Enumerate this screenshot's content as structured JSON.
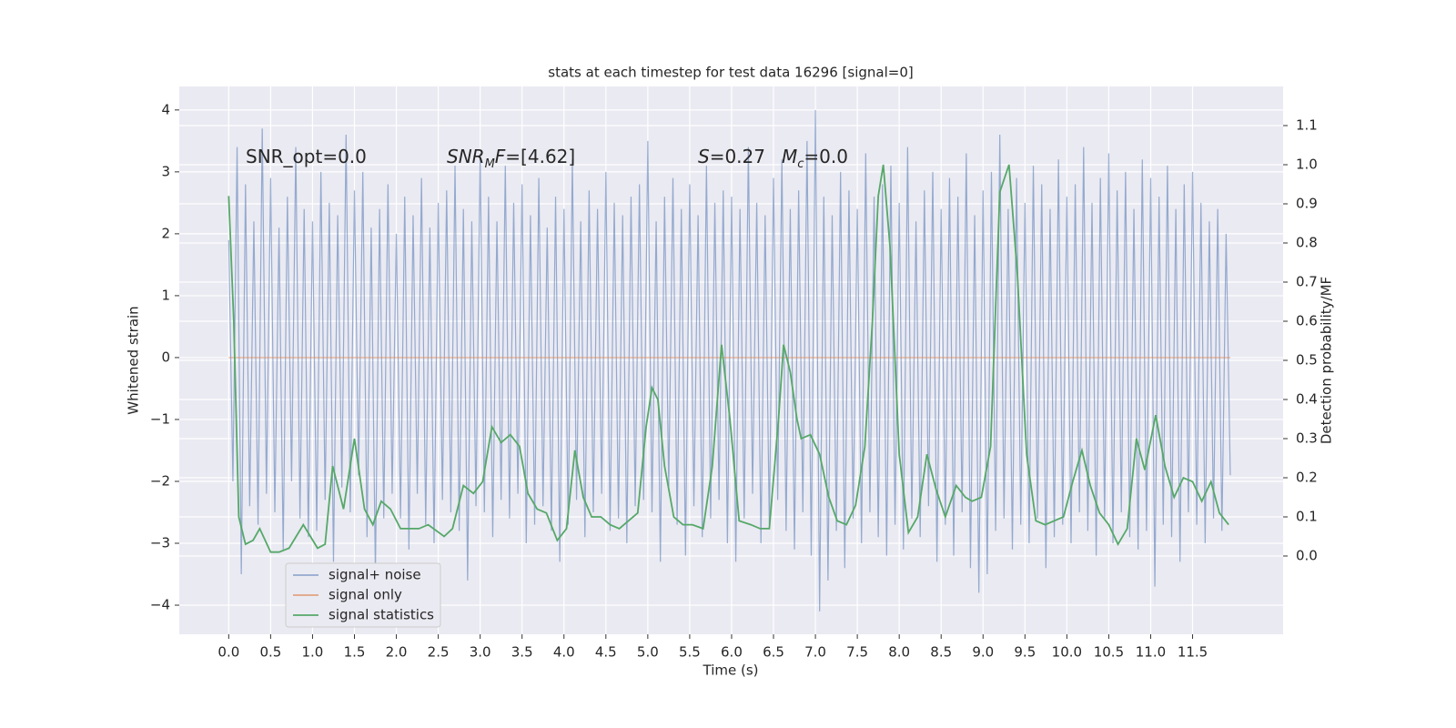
{
  "chart_data": {
    "type": "line",
    "title": "stats at each timestep for test data 16296 [signal=0]",
    "xlabel": "Time (s)",
    "ylabel": "Whitened strain",
    "y2label": "Detection probability/MF",
    "annotations": [
      [
        {
          "text": "SNR_opt=0.0",
          "style": "plain"
        }
      ],
      [
        {
          "text": "SNR",
          "style": "italic"
        },
        {
          "text": "M",
          "style": "sub"
        },
        {
          "text": "F",
          "style": "italic"
        },
        {
          "text": "=[4.62]",
          "style": "plain"
        }
      ],
      [
        {
          "text": "S",
          "style": "italic"
        },
        {
          "text": "=0.27",
          "style": "plain"
        }
      ],
      [
        {
          "text": "M",
          "style": "italic"
        },
        {
          "text": "c",
          "style": "sub"
        },
        {
          "text": "=0.0",
          "style": "plain"
        }
      ]
    ],
    "xlim": [
      -0.59,
      12.58
    ],
    "ylim": [
      -4.47,
      4.38
    ],
    "y2lim": [
      -0.2,
      1.2
    ],
    "xticks": [
      {
        "value": 0,
        "label": "0.0"
      },
      {
        "value": 0.5,
        "label": "0.5"
      },
      {
        "value": 1,
        "label": "1.0"
      },
      {
        "value": 1.5,
        "label": "1.5"
      },
      {
        "value": 2,
        "label": "2.0"
      },
      {
        "value": 2.5,
        "label": "2.5"
      },
      {
        "value": 3,
        "label": "3.0"
      },
      {
        "value": 3.5,
        "label": "3.5"
      },
      {
        "value": 4,
        "label": "4.0"
      },
      {
        "value": 4.5,
        "label": "4.5"
      },
      {
        "value": 5,
        "label": "5.0"
      },
      {
        "value": 5.5,
        "label": "5.5"
      },
      {
        "value": 6,
        "label": "6.0"
      },
      {
        "value": 6.5,
        "label": "6.5"
      },
      {
        "value": 7,
        "label": "7.0"
      },
      {
        "value": 7.5,
        "label": "7.5"
      },
      {
        "value": 8,
        "label": "8.0"
      },
      {
        "value": 8.5,
        "label": "8.5"
      },
      {
        "value": 9,
        "label": "9.0"
      },
      {
        "value": 9.5,
        "label": "9.5"
      },
      {
        "value": 10,
        "label": "10.0"
      },
      {
        "value": 10.5,
        "label": "10.5"
      },
      {
        "value": 11,
        "label": "11.0"
      },
      {
        "value": 11.5,
        "label": "11.5"
      }
    ],
    "yticks": [
      {
        "value": -4,
        "label": "−4"
      },
      {
        "value": -3,
        "label": "−3"
      },
      {
        "value": -2,
        "label": "−2"
      },
      {
        "value": -1,
        "label": "−1"
      },
      0,
      1,
      2,
      3,
      4
    ],
    "y2ticks": [
      {
        "value": 0,
        "label": "0.0"
      },
      {
        "value": 0.1,
        "label": "0.1"
      },
      {
        "value": 0.2,
        "label": "0.2"
      },
      {
        "value": 0.3,
        "label": "0.3"
      },
      {
        "value": 0.4,
        "label": "0.4"
      },
      {
        "value": 0.5,
        "label": "0.5"
      },
      {
        "value": 0.6,
        "label": "0.6"
      },
      {
        "value": 0.7,
        "label": "0.7"
      },
      {
        "value": 0.8,
        "label": "0.8"
      },
      {
        "value": 0.9,
        "label": "0.9"
      },
      {
        "value": 1,
        "label": "1.0"
      },
      {
        "value": 1.1,
        "label": "1.1"
      }
    ],
    "grid": true,
    "legend": "lower left",
    "series": [
      {
        "name": "signal+ noise",
        "color": "#4c72b0",
        "alpha": 0.55,
        "x": [
          0,
          0.05,
          0.1,
          0.15,
          0.2,
          0.25,
          0.3,
          0.35,
          0.4,
          0.45,
          0.5,
          0.55,
          0.6,
          0.65,
          0.7,
          0.75,
          0.8,
          0.85,
          0.9,
          0.95,
          1,
          1.05,
          1.1,
          1.15,
          1.2,
          1.25,
          1.3,
          1.35,
          1.4,
          1.45,
          1.5,
          1.55,
          1.6,
          1.65,
          1.7,
          1.75,
          1.8,
          1.85,
          1.9,
          1.95,
          2,
          2.05,
          2.1,
          2.15,
          2.2,
          2.25,
          2.3,
          2.35,
          2.4,
          2.45,
          2.5,
          2.55,
          2.6,
          2.65,
          2.7,
          2.75,
          2.8,
          2.85,
          2.9,
          2.95,
          3,
          3.05,
          3.1,
          3.15,
          3.2,
          3.25,
          3.3,
          3.35,
          3.4,
          3.45,
          3.5,
          3.55,
          3.6,
          3.65,
          3.7,
          3.75,
          3.8,
          3.85,
          3.9,
          3.95,
          4,
          4.05,
          4.1,
          4.15,
          4.2,
          4.25,
          4.3,
          4.35,
          4.4,
          4.45,
          4.5,
          4.55,
          4.6,
          4.65,
          4.7,
          4.75,
          4.8,
          4.85,
          4.9,
          4.95,
          5,
          5.05,
          5.1,
          5.15,
          5.2,
          5.25,
          5.3,
          5.35,
          5.4,
          5.45,
          5.5,
          5.55,
          5.6,
          5.65,
          5.7,
          5.75,
          5.8,
          5.85,
          5.9,
          5.95,
          6,
          6.05,
          6.1,
          6.15,
          6.2,
          6.25,
          6.3,
          6.35,
          6.4,
          6.45,
          6.5,
          6.55,
          6.6,
          6.65,
          6.7,
          6.75,
          6.8,
          6.85,
          6.9,
          6.95,
          7,
          7.05,
          7.1,
          7.15,
          7.2,
          7.25,
          7.3,
          7.35,
          7.4,
          7.45,
          7.5,
          7.55,
          7.6,
          7.65,
          7.7,
          7.75,
          7.8,
          7.85,
          7.9,
          7.95,
          8,
          8.05,
          8.1,
          8.15,
          8.2,
          8.25,
          8.3,
          8.35,
          8.4,
          8.45,
          8.5,
          8.55,
          8.6,
          8.65,
          8.7,
          8.75,
          8.8,
          8.85,
          8.9,
          8.95,
          9,
          9.05,
          9.1,
          9.15,
          9.2,
          9.25,
          9.3,
          9.35,
          9.4,
          9.45,
          9.5,
          9.55,
          9.6,
          9.65,
          9.7,
          9.75,
          9.8,
          9.85,
          9.9,
          9.95,
          10,
          10.05,
          10.1,
          10.15,
          10.2,
          10.25,
          10.3,
          10.35,
          10.4,
          10.45,
          10.5,
          10.55,
          10.6,
          10.65,
          10.7,
          10.75,
          10.8,
          10.85,
          10.9,
          10.95,
          11,
          11.05,
          11.1,
          11.15,
          11.2,
          11.25,
          11.3,
          11.35,
          11.4,
          11.45,
          11.5,
          11.55,
          11.6,
          11.65,
          11.7,
          11.75,
          11.8,
          11.85,
          11.9,
          11.95
        ],
        "values": [
          1.9,
          -2.0,
          3.4,
          -3.5,
          2.8,
          -2.4,
          2.2,
          -2.7,
          3.7,
          -2.2,
          2.9,
          -2.5,
          2.1,
          -3.1,
          2.6,
          -2.0,
          3.4,
          -2.6,
          2.4,
          -2.9,
          2.2,
          -2.8,
          3.0,
          -2.3,
          2.5,
          -3.3,
          2.3,
          -2.1,
          3.6,
          -2.5,
          2.7,
          -1.9,
          3.0,
          -2.9,
          2.1,
          -3.5,
          2.4,
          -2.6,
          2.8,
          -2.2,
          2.0,
          -2.6,
          2.6,
          -3.1,
          2.3,
          -2.2,
          2.9,
          -2.7,
          2.1,
          -3.0,
          2.5,
          -2.3,
          2.7,
          -2.5,
          3.1,
          -2.8,
          2.4,
          -3.6,
          2.2,
          -2.4,
          3.3,
          -2.5,
          2.6,
          -2.9,
          2.2,
          -2.3,
          3.1,
          -2.6,
          2.5,
          -2.2,
          2.8,
          -3.0,
          2.3,
          -2.7,
          2.9,
          -2.4,
          2.1,
          -2.8,
          2.6,
          -3.3,
          2.4,
          -2.7,
          3.2,
          -2.3,
          2.2,
          -2.9,
          2.7,
          -2.5,
          2.4,
          -2.2,
          3.0,
          -2.8,
          2.5,
          -2.6,
          2.3,
          -3.0,
          2.6,
          -2.4,
          2.8,
          -2.3,
          3.5,
          -2.5,
          2.2,
          -3.3,
          2.6,
          -2.1,
          2.9,
          -2.7,
          2.4,
          -3.2,
          2.8,
          -2.4,
          2.3,
          -2.9,
          3.1,
          -2.6,
          2.5,
          -2.3,
          2.7,
          -3.0,
          2.6,
          -3.3,
          2.4,
          -2.6,
          3.4,
          -2.2,
          2.5,
          -3.0,
          2.3,
          -2.7,
          2.9,
          -2.3,
          3.2,
          -2.8,
          2.4,
          -3.1,
          2.7,
          -2.5,
          3.5,
          -3.2,
          4.0,
          -4.1,
          2.6,
          -3.6,
          2.3,
          -2.8,
          3.0,
          -3.4,
          2.7,
          -2.6,
          2.4,
          -3.0,
          3.3,
          -2.5,
          2.6,
          -2.9,
          2.8,
          -3.2,
          3.1,
          -2.7,
          2.5,
          -3.1,
          3.4,
          -2.6,
          2.2,
          -2.9,
          2.7,
          -2.4,
          3.0,
          -3.3,
          2.4,
          -2.7,
          2.9,
          -3.2,
          2.6,
          -2.5,
          3.3,
          -3.4,
          2.3,
          -3.8,
          2.7,
          -3.5,
          3.0,
          -2.8,
          3.6,
          -2.6,
          2.4,
          -3.1,
          2.9,
          -2.7,
          2.5,
          -3.0,
          3.1,
          -2.6,
          2.8,
          -3.4,
          2.4,
          -2.9,
          3.2,
          -2.7,
          2.6,
          -3.0,
          2.8,
          -2.5,
          3.4,
          -2.8,
          2.5,
          -3.2,
          2.9,
          -2.6,
          3.3,
          -3.0,
          2.7,
          -2.5,
          3.0,
          -2.9,
          2.4,
          -3.1,
          3.2,
          -2.8,
          2.9,
          -3.7,
          2.6,
          -2.7,
          3.1,
          -2.9,
          2.4,
          -3.3,
          2.8,
          -2.5,
          3.0,
          -2.7,
          2.5,
          -3.0,
          2.2,
          -2.6,
          2.4,
          -2.8,
          2.0,
          -1.9
        ]
      },
      {
        "name": "signal only",
        "color": "#dd8452",
        "alpha": 0.7,
        "x": [
          0,
          11.95
        ],
        "values": [
          0,
          0
        ]
      },
      {
        "name": "signal statistics",
        "color": "#55a868",
        "alpha": 1,
        "axis": "y2",
        "x": [
          0,
          0.06,
          0.12,
          0.2,
          0.29,
          0.37,
          0.5,
          0.6,
          0.72,
          0.89,
          1.06,
          1.15,
          1.24,
          1.37,
          1.5,
          1.62,
          1.72,
          1.82,
          1.93,
          2.05,
          2.27,
          2.38,
          2.57,
          2.67,
          2.8,
          2.92,
          3.03,
          3.14,
          3.25,
          3.36,
          3.47,
          3.57,
          3.68,
          3.79,
          3.92,
          4.03,
          4.13,
          4.23,
          4.33,
          4.44,
          4.55,
          4.66,
          4.77,
          4.88,
          4.98,
          5.05,
          5.12,
          5.2,
          5.31,
          5.42,
          5.53,
          5.66,
          5.77,
          5.88,
          5.98,
          6.09,
          6.23,
          6.34,
          6.45,
          6.56,
          6.62,
          6.7,
          6.78,
          6.83,
          6.94,
          7.05,
          7.16,
          7.26,
          7.37,
          7.48,
          7.59,
          7.68,
          7.75,
          7.81,
          7.89,
          8.0,
          8.11,
          8.22,
          8.33,
          8.44,
          8.55,
          8.68,
          8.79,
          8.87,
          8.98,
          9.09,
          9.2,
          9.31,
          9.41,
          9.52,
          9.63,
          9.74,
          9.85,
          9.96,
          10.07,
          10.18,
          10.28,
          10.39,
          10.5,
          10.61,
          10.72,
          10.83,
          10.93,
          11.06,
          11.17,
          11.28,
          11.39,
          11.5,
          11.61,
          11.72,
          11.82,
          11.93
        ],
        "values": [
          0.92,
          0.6,
          0.1,
          0.03,
          0.04,
          0.07,
          0.01,
          0.01,
          0.02,
          0.08,
          0.02,
          0.03,
          0.23,
          0.12,
          0.3,
          0.12,
          0.08,
          0.14,
          0.12,
          0.07,
          0.07,
          0.08,
          0.05,
          0.07,
          0.18,
          0.16,
          0.19,
          0.33,
          0.29,
          0.31,
          0.28,
          0.16,
          0.12,
          0.11,
          0.04,
          0.07,
          0.27,
          0.15,
          0.1,
          0.1,
          0.08,
          0.07,
          0.09,
          0.11,
          0.33,
          0.43,
          0.4,
          0.23,
          0.1,
          0.08,
          0.08,
          0.07,
          0.23,
          0.54,
          0.35,
          0.09,
          0.08,
          0.07,
          0.07,
          0.35,
          0.54,
          0.47,
          0.35,
          0.3,
          0.31,
          0.26,
          0.15,
          0.09,
          0.08,
          0.13,
          0.28,
          0.6,
          0.92,
          1.0,
          0.79,
          0.26,
          0.06,
          0.1,
          0.26,
          0.17,
          0.1,
          0.18,
          0.15,
          0.14,
          0.15,
          0.28,
          0.93,
          1.0,
          0.72,
          0.26,
          0.09,
          0.08,
          0.09,
          0.1,
          0.19,
          0.27,
          0.18,
          0.11,
          0.08,
          0.03,
          0.07,
          0.3,
          0.22,
          0.36,
          0.23,
          0.15,
          0.2,
          0.19,
          0.14,
          0.19,
          0.11,
          0.08
        ]
      }
    ]
  }
}
